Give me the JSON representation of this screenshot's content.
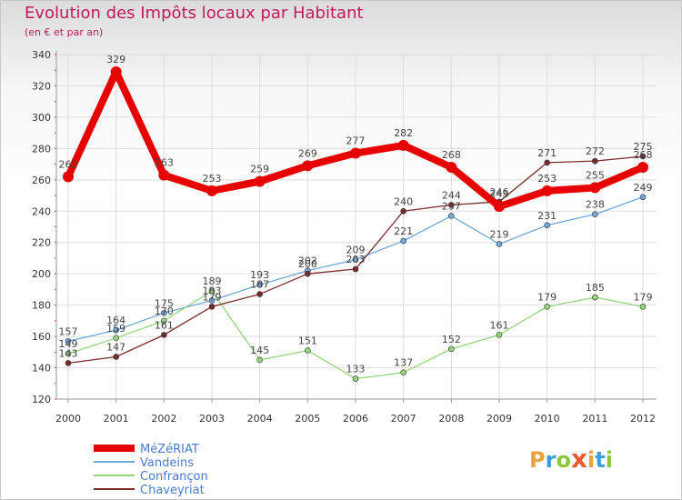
{
  "title": "Evolution des Impôts locaux par Habitant",
  "subtitle": "(en € et par an)",
  "brand": {
    "letters": [
      "P",
      "r",
      "o",
      "x",
      "i",
      "t",
      "i"
    ],
    "colors": [
      "#e8a33c",
      "#3aa0dc",
      "#8dc63f",
      "#e85d2c",
      "#e8a33c",
      "#3aa0dc",
      "#8dc63f"
    ]
  },
  "chart_data": {
    "type": "line",
    "title": "Evolution des Impôts locaux par Habitant",
    "subtitle": "(en € et par an)",
    "x": [
      "2000",
      "2001",
      "2002",
      "2003",
      "2004",
      "2005",
      "2006",
      "2007",
      "2008",
      "2009",
      "2010",
      "2011",
      "2012"
    ],
    "ylim": [
      120,
      340
    ],
    "yticks": [
      "120",
      "140",
      "160",
      "180",
      "200",
      "220",
      "240",
      "260",
      "280",
      "300",
      "320",
      "340"
    ],
    "grid": true,
    "legend_position": "bottom-left",
    "series": [
      {
        "name": "MéZéRIAT",
        "color": "#e60000",
        "emphasis": true,
        "values": [
          262,
          329,
          263,
          253,
          259,
          269,
          277,
          282,
          268,
          243,
          253,
          255,
          268
        ]
      },
      {
        "name": "Vandeins",
        "color": "#6fa8dc",
        "emphasis": false,
        "values": [
          157,
          164,
          175,
          183,
          193,
          202,
          209,
          221,
          237,
          219,
          231,
          238,
          249
        ]
      },
      {
        "name": "Confrançon",
        "color": "#93d67a",
        "emphasis": false,
        "values": [
          149,
          159,
          170,
          189,
          145,
          151,
          133,
          137,
          152,
          161,
          179,
          185,
          179
        ]
      },
      {
        "name": "Chaveyriat",
        "color": "#7a2a2a",
        "emphasis": false,
        "values": [
          143,
          147,
          161,
          179,
          187,
          200,
          203,
          240,
          244,
          246,
          271,
          272,
          275
        ]
      }
    ]
  }
}
